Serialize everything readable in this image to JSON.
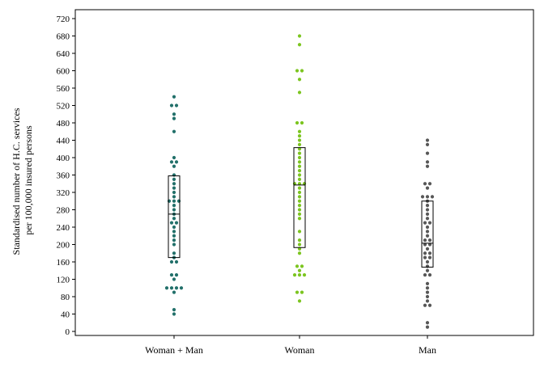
{
  "chart_data": {
    "type": "scatter",
    "subtype": "dot-strip-with-boxes",
    "ylabel_lines": [
      "Standardised number of H.C. services",
      "per 100,000 insured persons"
    ],
    "ylim": [
      0,
      720
    ],
    "yticks": [
      0,
      40,
      80,
      120,
      160,
      200,
      240,
      280,
      320,
      360,
      400,
      440,
      480,
      520,
      560,
      600,
      640,
      680,
      720
    ],
    "categories": [
      "Woman + Man",
      "Woman",
      "Man"
    ],
    "grid": false,
    "legend": "none",
    "series": [
      {
        "color": "#22706a",
        "values": [
          40,
          50,
          90,
          100,
          100,
          100,
          100,
          120,
          130,
          130,
          160,
          160,
          170,
          180,
          200,
          210,
          220,
          230,
          240,
          250,
          250,
          260,
          270,
          280,
          290,
          300,
          300,
          300,
          310,
          320,
          330,
          340,
          350,
          360,
          380,
          390,
          390,
          400,
          460,
          490,
          500,
          520,
          520,
          540
        ],
        "box": {
          "q1": 170,
          "median": 270,
          "q3": 358
        }
      },
      {
        "color": "#7cc520",
        "values": [
          70,
          90,
          90,
          130,
          130,
          130,
          140,
          150,
          150,
          180,
          190,
          200,
          210,
          230,
          260,
          270,
          280,
          290,
          300,
          310,
          320,
          330,
          340,
          340,
          340,
          350,
          360,
          370,
          380,
          390,
          400,
          410,
          420,
          430,
          440,
          450,
          460,
          480,
          480,
          550,
          580,
          600,
          600,
          660,
          680
        ],
        "box": {
          "q1": 193,
          "median": 337,
          "q3": 423
        }
      },
      {
        "color": "#575757",
        "values": [
          10,
          20,
          60,
          60,
          70,
          80,
          90,
          100,
          110,
          130,
          130,
          140,
          150,
          160,
          170,
          170,
          180,
          180,
          190,
          200,
          200,
          210,
          210,
          220,
          230,
          240,
          250,
          250,
          260,
          270,
          280,
          290,
          300,
          310,
          310,
          310,
          330,
          340,
          340,
          380,
          390,
          410,
          430,
          440
        ],
        "box": {
          "q1": 148,
          "median": 203,
          "q3": 300
        }
      }
    ]
  }
}
